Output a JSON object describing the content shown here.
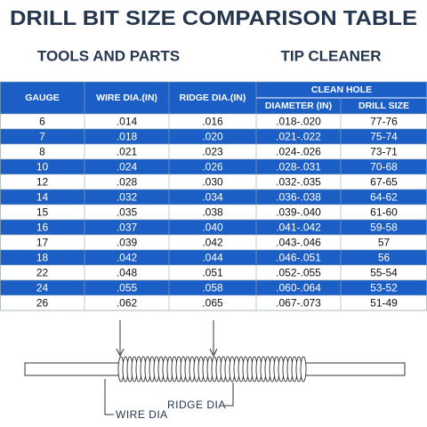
{
  "header": {
    "title": "DRILL BIT SIZE COMPARISON TABLE",
    "left_subtitle": "TOOLS AND PARTS",
    "right_subtitle": "TIP CLEANER"
  },
  "table": {
    "columns": [
      "GAUGE",
      "WIRE DIA.(IN)",
      "RIDGE DIA.(IN)"
    ],
    "group": "CLEAN HOLE",
    "group_columns": [
      "DIAMETER (IN)",
      "DRILL SIZE"
    ],
    "rows": [
      [
        "6",
        ".014",
        ".016",
        ".018-.020",
        "77-76"
      ],
      [
        "7",
        ".018",
        ".020",
        ".021-.022",
        "75-74"
      ],
      [
        "8",
        ".021",
        ".023",
        ".024-.026",
        "73-71"
      ],
      [
        "10",
        ".024",
        ".026",
        ".028-.031",
        "70-68"
      ],
      [
        "12",
        ".028",
        ".030",
        ".032-.035",
        "67-65"
      ],
      [
        "14",
        ".032",
        ".034",
        ".036-.038",
        "64-62"
      ],
      [
        "15",
        ".035",
        ".038",
        ".039-.040",
        "61-60"
      ],
      [
        "16",
        ".037",
        ".040",
        ".041-.042",
        "59-58"
      ],
      [
        "17",
        ".039",
        ".042",
        ".043-.046",
        "57"
      ],
      [
        "18",
        ".042",
        ".044",
        ".046-.051",
        "56"
      ],
      [
        "22",
        ".048",
        ".051",
        ".052-.055",
        "55-54"
      ],
      [
        "24",
        ".055",
        ".058",
        ".060-.064",
        "53-52"
      ],
      [
        "26",
        ".062",
        ".065",
        ".067-.073",
        "51-49"
      ]
    ]
  },
  "diagram": {
    "wire_label": "WIRE DIA",
    "ridge_label": "RIDGE DIA"
  }
}
